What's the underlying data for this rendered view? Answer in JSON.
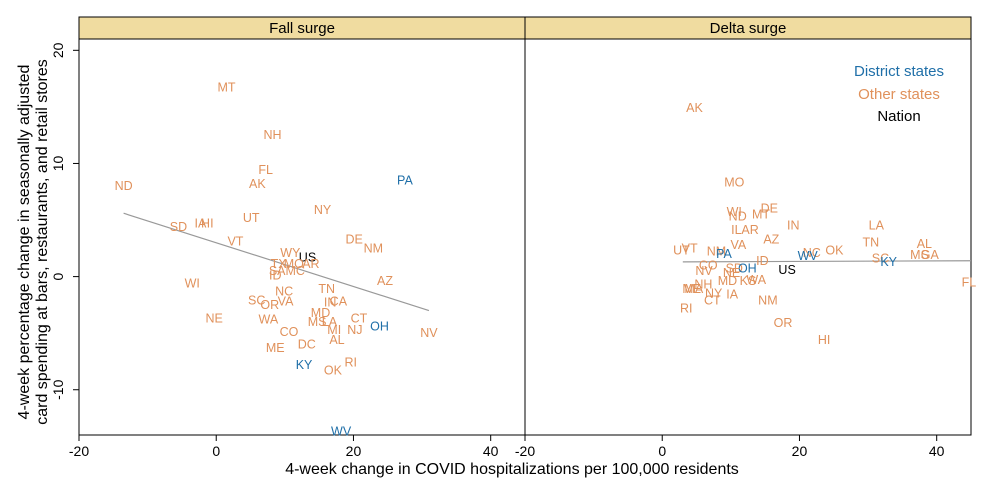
{
  "chart_data": {
    "type": "scatter",
    "xlabel": "4-week change in COVID hospitalizations per 100,000 residents",
    "ylabel_lines": [
      "4-week percentage change in seasonally adjusted",
      "card spending at bars, restaurants, and retail stores"
    ],
    "xlim": [
      -20,
      45
    ],
    "ylim": [
      -14,
      21
    ],
    "xticks": [
      -20,
      0,
      20,
      40
    ],
    "yticks": [
      -10,
      0,
      10,
      20
    ],
    "colors": {
      "district": "#1f6fa8",
      "other": "#e0915b",
      "nation": "#000000",
      "fit": "#999999",
      "strip": "#f0dca0"
    },
    "legend": {
      "position": "top-right",
      "items": [
        {
          "label": "District states",
          "group": "district"
        },
        {
          "label": "Other states",
          "group": "other"
        },
        {
          "label": "Nation",
          "group": "nation"
        }
      ]
    },
    "panels": [
      {
        "title": "Fall surge",
        "fit": {
          "x": [
            -13.5,
            31
          ],
          "y": [
            5.6,
            -3.0
          ]
        },
        "points": [
          {
            "label": "MT",
            "x": 1.5,
            "y": 16.7,
            "group": "other"
          },
          {
            "label": "NH",
            "x": 8.2,
            "y": 12.5,
            "group": "other"
          },
          {
            "label": "FL",
            "x": 7.2,
            "y": 9.4,
            "group": "other"
          },
          {
            "label": "AK",
            "x": 6.0,
            "y": 8.2,
            "group": "other"
          },
          {
            "label": "ND",
            "x": -13.5,
            "y": 8.0,
            "group": "other"
          },
          {
            "label": "PA",
            "x": 27.5,
            "y": 8.5,
            "group": "district"
          },
          {
            "label": "NY",
            "x": 15.5,
            "y": 5.9,
            "group": "other"
          },
          {
            "label": "UT",
            "x": 5.1,
            "y": 5.2,
            "group": "other"
          },
          {
            "label": "SD",
            "x": -5.5,
            "y": 4.4,
            "group": "other"
          },
          {
            "label": "IA",
            "x": -2.3,
            "y": 4.7,
            "group": "other"
          },
          {
            "label": "HI",
            "x": -1.3,
            "y": 4.7,
            "group": "other"
          },
          {
            "label": "VT",
            "x": 2.8,
            "y": 3.1,
            "group": "other"
          },
          {
            "label": "DE",
            "x": 20.1,
            "y": 3.3,
            "group": "other"
          },
          {
            "label": "NM",
            "x": 22.9,
            "y": 2.5,
            "group": "other"
          },
          {
            "label": "WY",
            "x": 10.8,
            "y": 2.1,
            "group": "other"
          },
          {
            "label": "US",
            "x": 13.3,
            "y": 1.7,
            "group": "nation"
          },
          {
            "label": "TX",
            "x": 9.1,
            "y": 1.1,
            "group": "other"
          },
          {
            "label": "MO",
            "x": 11.3,
            "y": 1.1,
            "group": "other"
          },
          {
            "label": "AR",
            "x": 13.8,
            "y": 1.1,
            "group": "other"
          },
          {
            "label": "SAMC",
            "x": 10.3,
            "y": 0.5,
            "group": "other"
          },
          {
            "label": "ID",
            "x": 8.6,
            "y": 0.1,
            "group": "other"
          },
          {
            "label": "AZ",
            "x": 24.6,
            "y": -0.4,
            "group": "other"
          },
          {
            "label": "WI",
            "x": -3.5,
            "y": -0.6,
            "group": "other"
          },
          {
            "label": "NC",
            "x": 9.9,
            "y": -1.3,
            "group": "other"
          },
          {
            "label": "TN",
            "x": 16.1,
            "y": -1.1,
            "group": "other"
          },
          {
            "label": "SC",
            "x": 5.9,
            "y": -2.1,
            "group": "other"
          },
          {
            "label": "VA",
            "x": 10.1,
            "y": -2.2,
            "group": "other"
          },
          {
            "label": "IN",
            "x": 16.6,
            "y": -2.3,
            "group": "other"
          },
          {
            "label": "CA",
            "x": 17.8,
            "y": -2.2,
            "group": "other"
          },
          {
            "label": "OR",
            "x": 7.8,
            "y": -2.5,
            "group": "other"
          },
          {
            "label": "MD",
            "x": 15.2,
            "y": -3.2,
            "group": "other"
          },
          {
            "label": "NE",
            "x": -0.3,
            "y": -3.7,
            "group": "other"
          },
          {
            "label": "WA",
            "x": 7.6,
            "y": -3.8,
            "group": "other"
          },
          {
            "label": "MS",
            "x": 14.7,
            "y": -4.0,
            "group": "other"
          },
          {
            "label": "LA",
            "x": 16.5,
            "y": -4.0,
            "group": "other"
          },
          {
            "label": "CT",
            "x": 20.8,
            "y": -3.7,
            "group": "other"
          },
          {
            "label": "OH",
            "x": 23.8,
            "y": -4.4,
            "group": "district"
          },
          {
            "label": "MI",
            "x": 17.2,
            "y": -4.7,
            "group": "other"
          },
          {
            "label": "NJ",
            "x": 20.2,
            "y": -4.7,
            "group": "other"
          },
          {
            "label": "CO",
            "x": 10.6,
            "y": -4.9,
            "group": "other"
          },
          {
            "label": "NV",
            "x": 31.0,
            "y": -5.0,
            "group": "other"
          },
          {
            "label": "AL",
            "x": 17.6,
            "y": -5.6,
            "group": "other"
          },
          {
            "label": "DC",
            "x": 13.2,
            "y": -6.0,
            "group": "other"
          },
          {
            "label": "ME",
            "x": 8.6,
            "y": -6.3,
            "group": "other"
          },
          {
            "label": "KY",
            "x": 12.8,
            "y": -7.8,
            "group": "district"
          },
          {
            "label": "RI",
            "x": 19.6,
            "y": -7.6,
            "group": "other"
          },
          {
            "label": "OK",
            "x": 17.0,
            "y": -8.3,
            "group": "other"
          },
          {
            "label": "WV",
            "x": 18.2,
            "y": -13.7,
            "group": "district"
          }
        ]
      },
      {
        "title": "Delta surge",
        "fit": {
          "x": [
            3,
            45
          ],
          "y": [
            1.3,
            1.4
          ]
        },
        "points": [
          {
            "label": "AK",
            "x": 4.7,
            "y": 14.9,
            "group": "other"
          },
          {
            "label": "MO",
            "x": 10.5,
            "y": 8.3,
            "group": "other"
          },
          {
            "label": "DE",
            "x": 15.6,
            "y": 6.0,
            "group": "other"
          },
          {
            "label": "WI",
            "x": 10.5,
            "y": 5.7,
            "group": "other"
          },
          {
            "label": "MT",
            "x": 14.4,
            "y": 5.5,
            "group": "other"
          },
          {
            "label": "ND",
            "x": 11.0,
            "y": 5.3,
            "group": "other"
          },
          {
            "label": "IN",
            "x": 19.1,
            "y": 4.5,
            "group": "other"
          },
          {
            "label": "LA",
            "x": 31.2,
            "y": 4.5,
            "group": "other"
          },
          {
            "label": "IL",
            "x": 10.8,
            "y": 4.1,
            "group": "other"
          },
          {
            "label": "AR",
            "x": 12.8,
            "y": 4.1,
            "group": "other"
          },
          {
            "label": "AZ",
            "x": 15.9,
            "y": 3.3,
            "group": "other"
          },
          {
            "label": "VA",
            "x": 11.1,
            "y": 2.8,
            "group": "other"
          },
          {
            "label": "TN",
            "x": 30.4,
            "y": 3.0,
            "group": "other"
          },
          {
            "label": "AL",
            "x": 38.2,
            "y": 2.9,
            "group": "other"
          },
          {
            "label": "UT",
            "x": 2.8,
            "y": 2.3,
            "group": "other"
          },
          {
            "label": "VT",
            "x": 4.0,
            "y": 2.5,
            "group": "other"
          },
          {
            "label": "NM",
            "x": 7.9,
            "y": 2.2,
            "group": "other"
          },
          {
            "label": "PA",
            "x": 9.0,
            "y": 2.0,
            "group": "district"
          },
          {
            "label": "OK",
            "x": 25.1,
            "y": 2.3,
            "group": "other"
          },
          {
            "label": "NC",
            "x": 21.8,
            "y": 2.1,
            "group": "other"
          },
          {
            "label": "WV",
            "x": 21.2,
            "y": 1.8,
            "group": "district"
          },
          {
            "label": "MS",
            "x": 37.5,
            "y": 1.9,
            "group": "other"
          },
          {
            "label": "GA",
            "x": 39.0,
            "y": 1.9,
            "group": "other"
          },
          {
            "label": "SC",
            "x": 31.8,
            "y": 1.6,
            "group": "other"
          },
          {
            "label": "KY",
            "x": 33.0,
            "y": 1.3,
            "group": "district"
          },
          {
            "label": "ID",
            "x": 14.6,
            "y": 1.4,
            "group": "other"
          },
          {
            "label": "NV",
            "x": 6.1,
            "y": 0.5,
            "group": "other"
          },
          {
            "label": "CO",
            "x": 6.7,
            "y": 1.0,
            "group": "other"
          },
          {
            "label": "SD",
            "x": 10.5,
            "y": 0.7,
            "group": "other"
          },
          {
            "label": "OH",
            "x": 12.4,
            "y": 0.7,
            "group": "district"
          },
          {
            "label": "US",
            "x": 18.2,
            "y": 0.6,
            "group": "nation"
          },
          {
            "label": "NE",
            "x": 10.1,
            "y": 0.3,
            "group": "other"
          },
          {
            "label": "KS",
            "x": 12.5,
            "y": -0.4,
            "group": "other"
          },
          {
            "label": "WA",
            "x": 13.7,
            "y": -0.3,
            "group": "other"
          },
          {
            "label": "NH",
            "x": 6.0,
            "y": -0.7,
            "group": "other"
          },
          {
            "label": "MD",
            "x": 9.5,
            "y": -0.4,
            "group": "other"
          },
          {
            "label": "ME",
            "x": 4.3,
            "y": -1.1,
            "group": "other"
          },
          {
            "label": "MA",
            "x": 4.6,
            "y": -1.1,
            "group": "other"
          },
          {
            "label": "NY",
            "x": 7.5,
            "y": -1.5,
            "group": "other"
          },
          {
            "label": "IA",
            "x": 10.2,
            "y": -1.6,
            "group": "other"
          },
          {
            "label": "CT",
            "x": 7.3,
            "y": -2.1,
            "group": "other"
          },
          {
            "label": "NM",
            "x": 15.4,
            "y": -2.1,
            "group": "other"
          },
          {
            "label": "FL",
            "x": 44.7,
            "y": -0.5,
            "group": "other"
          },
          {
            "label": "RI",
            "x": 3.5,
            "y": -2.8,
            "group": "other"
          },
          {
            "label": "OR",
            "x": 17.6,
            "y": -4.1,
            "group": "other"
          },
          {
            "label": "HI",
            "x": 23.6,
            "y": -5.6,
            "group": "other"
          }
        ]
      }
    ]
  }
}
